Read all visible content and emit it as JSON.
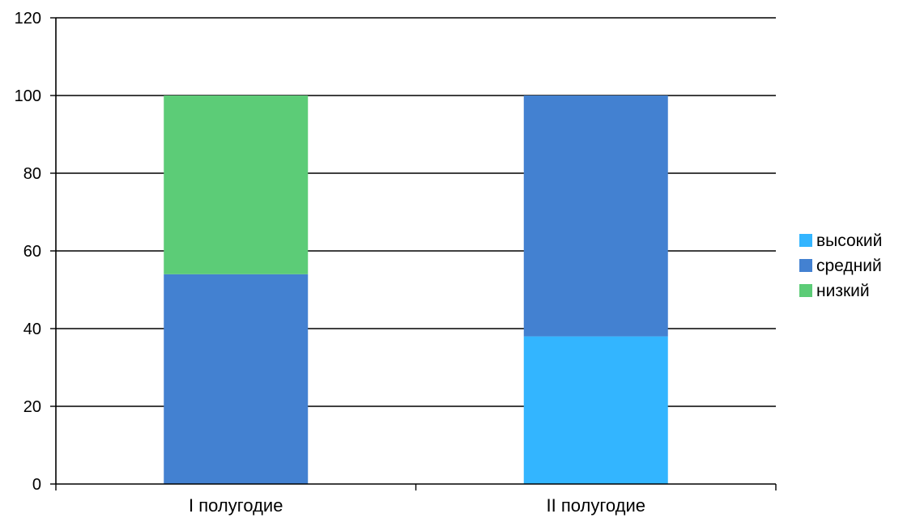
{
  "chart_data": {
    "type": "bar",
    "stacked": true,
    "categories": [
      "I  полугодие",
      "II полугодие"
    ],
    "series": [
      {
        "name": "высокий",
        "color": "#33b5ff",
        "values": [
          0,
          38
        ]
      },
      {
        "name": "средний",
        "color": "#4381d1",
        "values": [
          54,
          62
        ]
      },
      {
        "name": "низкий",
        "color": "#5ccc77",
        "values": [
          46,
          0
        ]
      }
    ],
    "ylim": [
      0,
      120
    ],
    "yticks": [
      0,
      20,
      40,
      60,
      80,
      100,
      120
    ],
    "grid": true,
    "legend": "right",
    "title": "",
    "xlabel": "",
    "ylabel": ""
  }
}
